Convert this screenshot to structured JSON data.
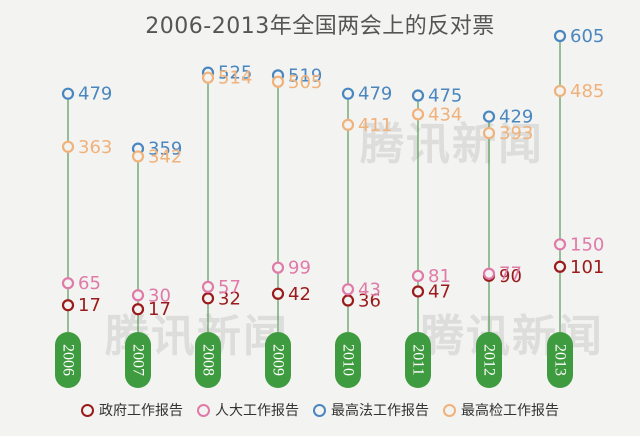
{
  "chart_data": {
    "type": "scatter",
    "title": "2006-2013年全国两会上的反对票",
    "categories": [
      "2006",
      "2007",
      "2008",
      "2009",
      "2010",
      "2011",
      "2012",
      "2013"
    ],
    "series": [
      {
        "name": "政府工作报告",
        "color": "#9a1b1b",
        "values": [
          17,
          17,
          32,
          42,
          36,
          47,
          90,
          101
        ]
      },
      {
        "name": "人大工作报告",
        "color": "#e07aa8",
        "values": [
          65,
          30,
          57,
          99,
          43,
          81,
          77,
          150
        ]
      },
      {
        "name": "最高法工作报告",
        "color": "#4a86c0",
        "values": [
          479,
          359,
          525,
          519,
          479,
          475,
          429,
          605
        ]
      },
      {
        "name": "最高检工作报告",
        "color": "#f0b27a",
        "values": [
          363,
          342,
          514,
          505,
          411,
          434,
          393,
          485
        ]
      }
    ],
    "ylim": [
      0,
      650
    ]
  },
  "watermark": {
    "text": "腾讯新闻"
  },
  "colors": {
    "axis_line": "#3a8a3a",
    "year_pill": "#3f9b3f",
    "background": "#f3f3f1"
  }
}
